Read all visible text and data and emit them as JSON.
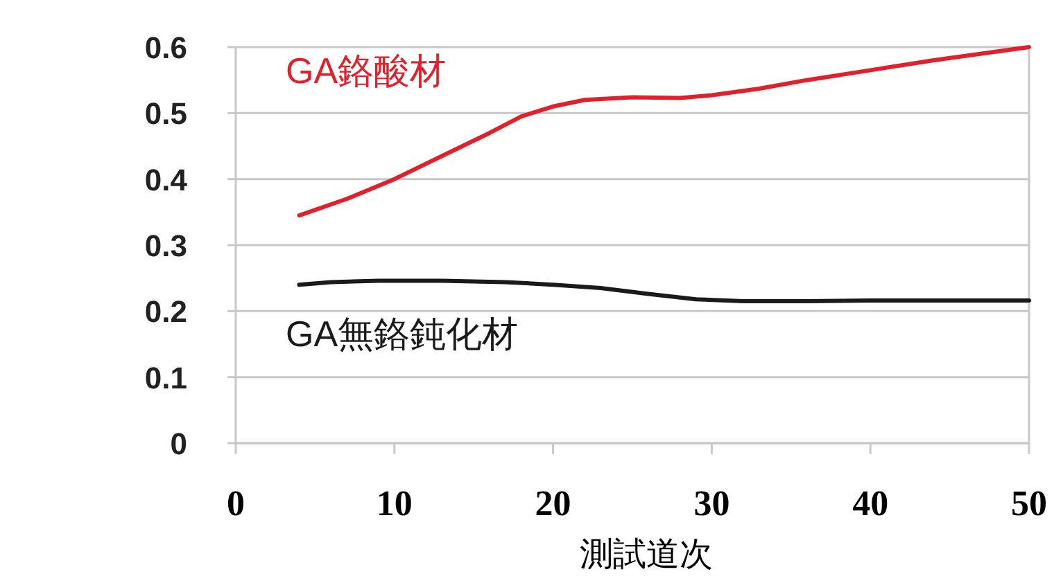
{
  "chart_data": {
    "type": "line",
    "xlabel": "測試道次",
    "xlim": [
      0,
      50
    ],
    "xticks": [
      0,
      10,
      20,
      30,
      40,
      50
    ],
    "ylim": [
      0,
      0.6
    ],
    "yticks": [
      0,
      0.1,
      0.2,
      0.3,
      0.4,
      0.5,
      0.6
    ],
    "grid": "y",
    "marker": "none",
    "line_style": "solid",
    "series": [
      {
        "name": "GA鉻酸材",
        "color": "#e0202a",
        "x": [
          4,
          7,
          10,
          13,
          16,
          18,
          20,
          22,
          25,
          28,
          30,
          33,
          36,
          40,
          44,
          47,
          50
        ],
        "values": [
          0.345,
          0.37,
          0.4,
          0.435,
          0.47,
          0.495,
          0.51,
          0.52,
          0.524,
          0.523,
          0.527,
          0.537,
          0.55,
          0.565,
          0.58,
          0.59,
          0.6
        ]
      },
      {
        "name": "GA無鉻鈍化材",
        "color": "#1a1a1a",
        "x": [
          4,
          6,
          9,
          13,
          17,
          20,
          23,
          26,
          29,
          32,
          36,
          40,
          45,
          50
        ],
        "values": [
          0.24,
          0.244,
          0.246,
          0.246,
          0.244,
          0.24,
          0.235,
          0.226,
          0.218,
          0.215,
          0.215,
          0.216,
          0.216,
          0.216
        ]
      }
    ]
  }
}
